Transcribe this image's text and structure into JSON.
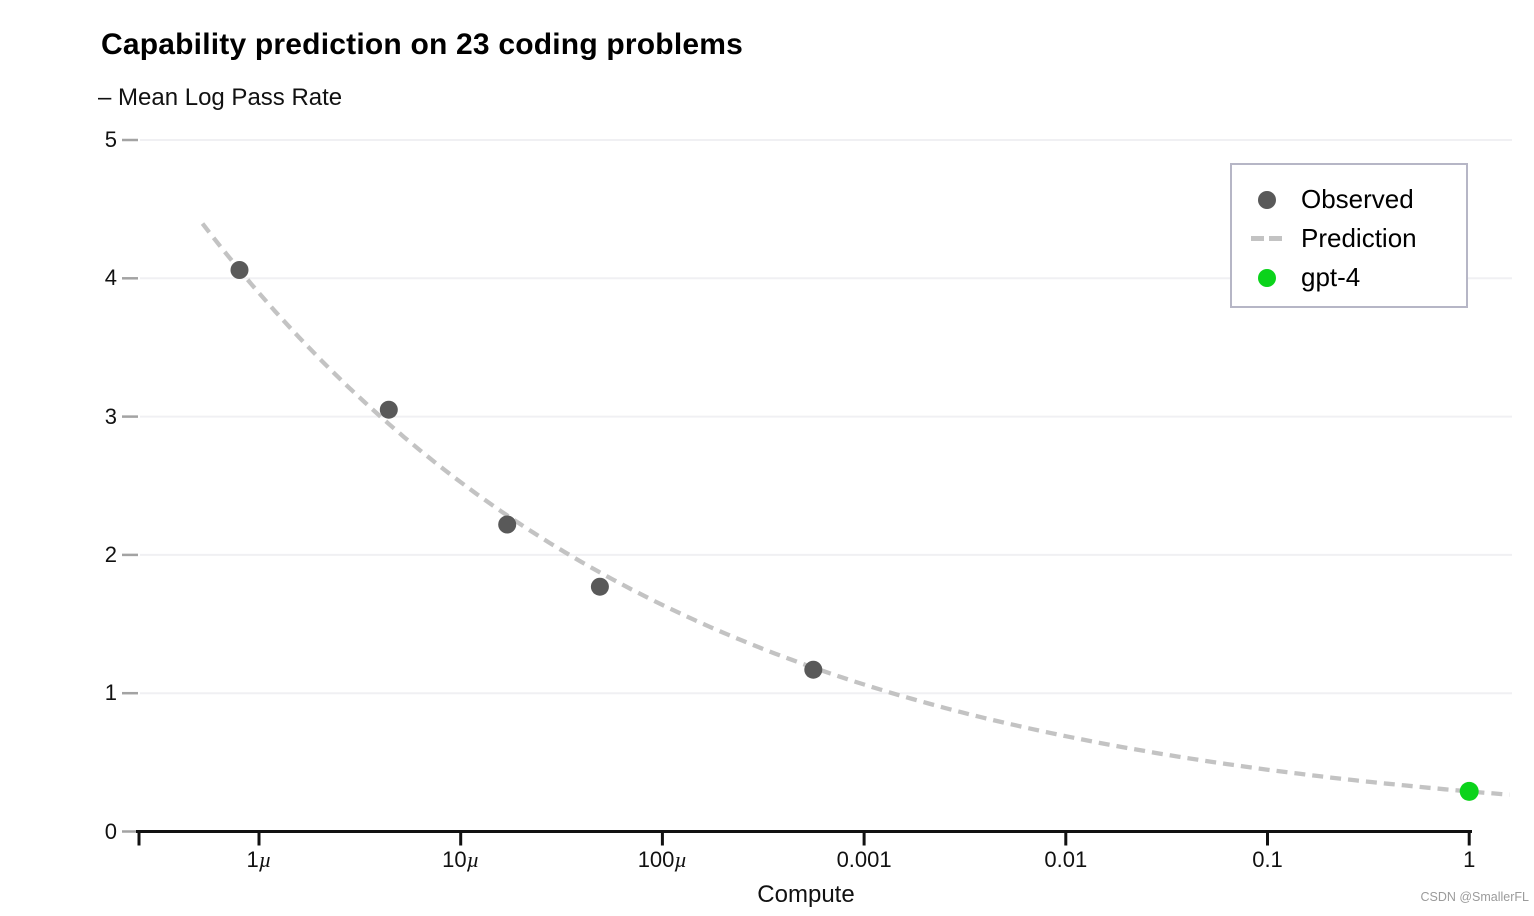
{
  "header": {
    "title": "Capability prediction on 23 coding problems",
    "subtitle": "– Mean Log Pass Rate"
  },
  "watermark": "CSDN @SmallerFL",
  "colors": {
    "observed": "#595959",
    "prediction": "#c3c3c3",
    "gpt4": "#0bd31b",
    "gridline": "#f0f0f3",
    "ytick_dash": "#a3a3a3",
    "axis": "#111111"
  },
  "legend": {
    "items": [
      {
        "label": "Observed",
        "marker": "dot",
        "color": "#595959"
      },
      {
        "label": "Prediction",
        "marker": "dashes",
        "color": "#c3c3c3"
      },
      {
        "label": "gpt-4",
        "marker": "dot",
        "color": "#0bd31b"
      }
    ]
  },
  "chart_data": {
    "type": "scatter",
    "title": "Capability prediction on 23 coding problems",
    "ylabel": "Mean Log Pass Rate",
    "xlabel": "Compute",
    "x_scale": "log10",
    "xlim_log10": [
      -6.68,
      0.21
    ],
    "ylim": [
      0,
      5
    ],
    "grid": "horizontal",
    "legend_position": "top-right",
    "yticks": [
      "0",
      "1",
      "2",
      "3",
      "4",
      "5"
    ],
    "xticks": [
      {
        "log10": -6,
        "label": "1µ"
      },
      {
        "log10": -5,
        "label": "10µ"
      },
      {
        "log10": -4,
        "label": "100µ"
      },
      {
        "log10": -3,
        "label": "0.001"
      },
      {
        "log10": -2,
        "label": "0.01"
      },
      {
        "log10": -1,
        "label": "0.1"
      },
      {
        "log10": 0,
        "label": "1"
      }
    ],
    "series": [
      {
        "name": "Observed",
        "type": "scatter",
        "color": "#595959",
        "points": [
          {
            "compute": 8e-07,
            "mean_log_pass_rate": 4.06
          },
          {
            "compute": 4.4e-06,
            "mean_log_pass_rate": 3.05
          },
          {
            "compute": 1.7e-05,
            "mean_log_pass_rate": 2.22
          },
          {
            "compute": 4.9e-05,
            "mean_log_pass_rate": 1.77
          },
          {
            "compute": 0.00056,
            "mean_log_pass_rate": 1.17
          }
        ]
      },
      {
        "name": "Prediction",
        "type": "line",
        "style": "dashed",
        "color": "#c3c3c3",
        "power_law": {
          "formula": "y = 0.29 * x^(-0.188)",
          "a": 0.29,
          "b": -0.188
        },
        "x_range_log10": [
          -6.28,
          0.21
        ]
      },
      {
        "name": "gpt-4",
        "type": "scatter",
        "color": "#0bd31b",
        "points": [
          {
            "compute": 1,
            "mean_log_pass_rate": 0.29
          }
        ]
      }
    ]
  }
}
